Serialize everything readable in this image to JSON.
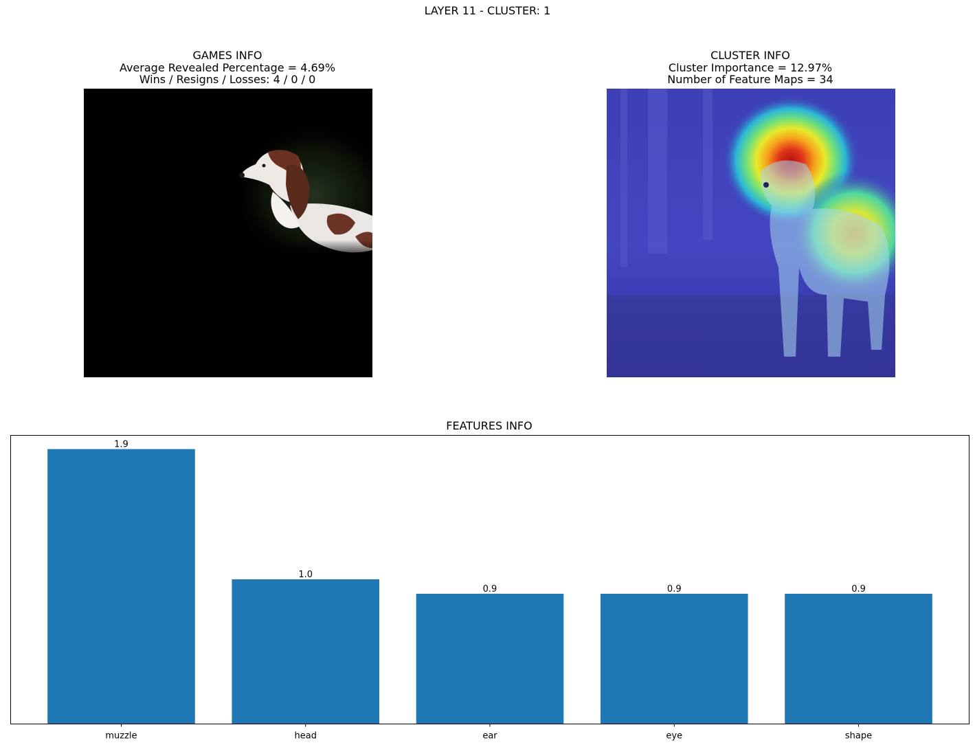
{
  "figure": {
    "suptitle": "LAYER 11 - CLUSTER: 1"
  },
  "games_info": {
    "title": "GAMES INFO",
    "line1": "Average Revealed Percentage = 4.69%",
    "line2": "Wins / Resigns / Losses: 4 / 0 / 0",
    "image": "masked dog photo (only the dog's head and back revealed, rest black)"
  },
  "cluster_info": {
    "title": "CLUSTER INFO",
    "line1": "Cluster Importance = 12.97%",
    "line2": "Number of Feature Maps = 34",
    "image": "dog photo with jet colormap heatmap overlay, hottest over the dog's head"
  },
  "chart_data": {
    "type": "bar",
    "title": "FEATURES INFO",
    "categories": [
      "muzzle",
      "head",
      "ear",
      "eye",
      "shape"
    ],
    "values": [
      1.9,
      1.0,
      0.9,
      0.9,
      0.9
    ],
    "bar_labels": [
      "1.9",
      "1.0",
      "0.9",
      "0.9",
      "0.9"
    ],
    "xlabel": "",
    "ylabel": "",
    "ylim": [
      0,
      1.995
    ],
    "show_yticks": false,
    "grid": false,
    "bar_color": "#1f77b4"
  }
}
